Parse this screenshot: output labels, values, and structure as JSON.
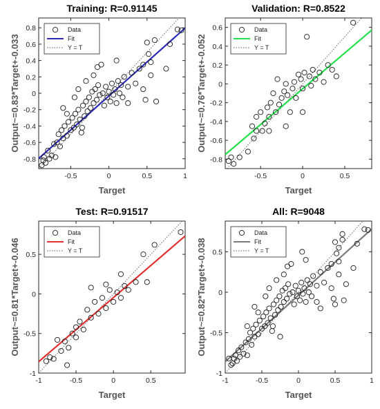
{
  "chart_data": [
    {
      "type": "scatter",
      "title": "Training: R=0.91145",
      "xlabel": "Target",
      "ylabel": "Output~=0.83*Target+-0.033",
      "xlim": [
        -0.92,
        1.0
      ],
      "ylim": [
        -0.92,
        0.92
      ],
      "xticks": [
        "-0.5",
        "0",
        "0.5",
        "1"
      ],
      "xtick_values": [
        -0.5,
        0,
        0.5,
        1
      ],
      "yticks": [
        "-0.8",
        "-0.6",
        "-0.4",
        "-0.2",
        "0",
        "0.2",
        "0.4",
        "0.6",
        "0.8"
      ],
      "ytick_values": [
        -0.8,
        -0.6,
        -0.4,
        -0.2,
        0,
        0.2,
        0.4,
        0.6,
        0.8
      ],
      "fit": {
        "slope": 0.83,
        "intercept": -0.033,
        "color": "#2B2BB8"
      },
      "legend": [
        "Data",
        "Fit",
        "Y = T"
      ],
      "legend_position": "top-left",
      "points": [
        [
          -0.88,
          -0.88
        ],
        [
          -0.86,
          -0.82
        ],
        [
          -0.85,
          -0.78
        ],
        [
          -0.83,
          -0.85
        ],
        [
          -0.8,
          -0.7
        ],
        [
          -0.78,
          -0.8
        ],
        [
          -0.75,
          -0.76
        ],
        [
          -0.72,
          -0.62
        ],
        [
          -0.7,
          -0.78
        ],
        [
          -0.68,
          -0.6
        ],
        [
          -0.66,
          -0.5
        ],
        [
          -0.64,
          -0.65
        ],
        [
          -0.62,
          -0.45
        ],
        [
          -0.6,
          -0.55
        ],
        [
          -0.58,
          -0.4
        ],
        [
          -0.55,
          -0.52
        ],
        [
          -0.53,
          -0.35
        ],
        [
          -0.5,
          -0.45
        ],
        [
          -0.48,
          -0.3
        ],
        [
          -0.46,
          -0.42
        ],
        [
          -0.44,
          -0.25
        ],
        [
          -0.42,
          -0.38
        ],
        [
          -0.4,
          -0.2
        ],
        [
          -0.38,
          -0.32
        ],
        [
          -0.36,
          -0.48
        ],
        [
          -0.34,
          -0.15
        ],
        [
          -0.32,
          -0.28
        ],
        [
          -0.3,
          -0.1
        ],
        [
          -0.28,
          -0.22
        ],
        [
          -0.26,
          -0.05
        ],
        [
          -0.24,
          -0.18
        ],
        [
          -0.22,
          0.02
        ],
        [
          -0.2,
          -0.12
        ],
        [
          -0.18,
          0.05
        ],
        [
          -0.16,
          -0.08
        ],
        [
          -0.14,
          0.1
        ],
        [
          -0.12,
          -0.02
        ],
        [
          -0.1,
          0.35
        ],
        [
          -0.08,
          0.0
        ],
        [
          -0.06,
          -0.15
        ],
        [
          -0.04,
          0.08
        ],
        [
          -0.02,
          -0.05
        ],
        [
          0.0,
          0.02
        ],
        [
          0.02,
          -0.1
        ],
        [
          0.04,
          0.12
        ],
        [
          0.06,
          -0.02
        ],
        [
          0.08,
          0.05
        ],
        [
          0.1,
          -0.12
        ],
        [
          0.12,
          0.15
        ],
        [
          0.14,
          0.0
        ],
        [
          0.16,
          0.1
        ],
        [
          0.18,
          -0.05
        ],
        [
          0.2,
          0.2
        ],
        [
          0.25,
          0.08
        ],
        [
          0.3,
          0.25
        ],
        [
          0.35,
          0.12
        ],
        [
          0.4,
          0.3
        ],
        [
          0.45,
          0.35
        ],
        [
          0.5,
          0.62
        ],
        [
          0.52,
          0.48
        ],
        [
          0.55,
          0.38
        ],
        [
          0.55,
          0.22
        ],
        [
          0.6,
          0.65
        ],
        [
          0.62,
          -0.1
        ],
        [
          0.48,
          -0.08
        ],
        [
          0.45,
          0.05
        ],
        [
          0.75,
          0.3
        ],
        [
          0.8,
          0.6
        ],
        [
          0.9,
          0.78
        ],
        [
          0.95,
          0.77
        ],
        [
          -0.6,
          -0.18
        ],
        [
          -0.55,
          -0.25
        ],
        [
          -0.45,
          -0.05
        ],
        [
          -0.2,
          0.22
        ],
        [
          -0.15,
          0.32
        ],
        [
          0.1,
          0.4
        ],
        [
          -0.3,
          0.15
        ],
        [
          -0.4,
          0.05
        ],
        [
          -0.35,
          -0.42
        ],
        [
          0.25,
          -0.12
        ]
      ]
    },
    {
      "type": "scatter",
      "title": "Validation: R=0.8522",
      "xlabel": "Target",
      "ylabel": "Output~=0.76*Target+-0.052",
      "xlim": [
        -0.92,
        0.82
      ],
      "ylim": [
        -0.9,
        0.7
      ],
      "xticks": [
        "-0.5",
        "0",
        "0.5"
      ],
      "xtick_values": [
        -0.5,
        0,
        0.5
      ],
      "yticks": [
        "-0.8",
        "-0.6",
        "-0.4",
        "-0.2",
        "0",
        "0.2",
        "0.4",
        "0.6"
      ],
      "ytick_values": [
        -0.8,
        -0.6,
        -0.4,
        -0.2,
        0,
        0.2,
        0.4,
        0.6
      ],
      "fit": {
        "slope": 0.76,
        "intercept": -0.052,
        "color": "#22E04A"
      },
      "legend": [
        "Data",
        "Fit",
        "Y = T"
      ],
      "legend_position": "top-left",
      "points": [
        [
          -0.88,
          -0.82
        ],
        [
          -0.85,
          -0.78
        ],
        [
          -0.82,
          -0.85
        ],
        [
          -0.75,
          -0.78
        ],
        [
          -0.65,
          -0.72
        ],
        [
          -0.6,
          -0.45
        ],
        [
          -0.55,
          -0.5
        ],
        [
          -0.5,
          -0.3
        ],
        [
          -0.45,
          -0.42
        ],
        [
          -0.42,
          -0.25
        ],
        [
          -0.4,
          -0.35
        ],
        [
          -0.38,
          -0.2
        ],
        [
          -0.35,
          -0.1
        ],
        [
          -0.32,
          -0.3
        ],
        [
          -0.3,
          0.05
        ],
        [
          -0.28,
          -0.22
        ],
        [
          -0.25,
          -0.15
        ],
        [
          -0.22,
          -0.08
        ],
        [
          -0.2,
          0.0
        ],
        [
          -0.18,
          -0.12
        ],
        [
          -0.15,
          -0.3
        ],
        [
          -0.12,
          -0.05
        ],
        [
          -0.1,
          0.02
        ],
        [
          -0.08,
          -0.15
        ],
        [
          -0.05,
          0.1
        ],
        [
          -0.02,
          0.05
        ],
        [
          0.0,
          -0.05
        ],
        [
          0.02,
          0.12
        ],
        [
          0.05,
          0.5
        ],
        [
          0.08,
          0.08
        ],
        [
          0.1,
          -0.02
        ],
        [
          0.12,
          0.15
        ],
        [
          0.15,
          0.05
        ],
        [
          0.2,
          0.12
        ],
        [
          0.25,
          0.02
        ],
        [
          0.3,
          0.2
        ],
        [
          0.35,
          0.15
        ],
        [
          0.4,
          0.08
        ],
        [
          0.6,
          0.65
        ],
        [
          -0.48,
          -0.5
        ],
        [
          -0.58,
          -0.58
        ],
        [
          -0.2,
          -0.45
        ],
        [
          0.0,
          -0.3
        ],
        [
          -0.4,
          -0.5
        ],
        [
          -0.55,
          -0.35
        ]
      ]
    },
    {
      "type": "scatter",
      "title": "Test: R=0.91517",
      "xlabel": "Target",
      "ylabel": "Output~=0.81*Target+-0.046",
      "xlim": [
        -1.0,
        0.96
      ],
      "ylim": [
        -1.0,
        0.92
      ],
      "xticks": [
        "-1",
        "-0.5",
        "0",
        "0.5"
      ],
      "xtick_values": [
        -1,
        -0.5,
        0,
        0.5
      ],
      "yticks": [
        "-1",
        "-0.5",
        "0",
        "0.5"
      ],
      "ytick_values": [
        -1,
        -0.5,
        0,
        0.5
      ],
      "fit": {
        "slope": 0.81,
        "intercept": -0.046,
        "color": "#E03030"
      },
      "legend": [
        "Data",
        "Fit",
        "Y = T"
      ],
      "legend_position": "top-left",
      "points": [
        [
          -0.9,
          -0.85
        ],
        [
          -0.85,
          -0.8
        ],
        [
          -0.8,
          -0.82
        ],
        [
          -0.75,
          -0.58
        ],
        [
          -0.7,
          -0.72
        ],
        [
          -0.65,
          -0.6
        ],
        [
          -0.6,
          -0.68
        ],
        [
          -0.55,
          -0.5
        ],
        [
          -0.5,
          -0.55
        ],
        [
          -0.45,
          -0.35
        ],
        [
          -0.4,
          -0.45
        ],
        [
          -0.35,
          -0.2
        ],
        [
          -0.3,
          -0.3
        ],
        [
          -0.25,
          -0.1
        ],
        [
          -0.2,
          -0.25
        ],
        [
          -0.15,
          -0.05
        ],
        [
          -0.1,
          -0.18
        ],
        [
          -0.05,
          0.05
        ],
        [
          0.0,
          -0.1
        ],
        [
          0.05,
          0.02
        ],
        [
          0.1,
          -0.05
        ],
        [
          0.15,
          0.1
        ],
        [
          0.2,
          0.05
        ],
        [
          0.3,
          0.15
        ],
        [
          0.45,
          0.15
        ],
        [
          0.4,
          0.5
        ],
        [
          0.55,
          0.62
        ],
        [
          0.9,
          0.78
        ],
        [
          -0.3,
          0.08
        ],
        [
          -0.1,
          0.12
        ],
        [
          0.1,
          0.25
        ],
        [
          -0.5,
          -0.42
        ],
        [
          -0.62,
          -0.9
        ]
      ]
    },
    {
      "type": "scatter",
      "title": "All: R=9048",
      "xlabel": "Target",
      "ylabel": "Output~=0.82*Target+-0.038",
      "xlim": [
        -1.0,
        1.0
      ],
      "ylim": [
        -1.0,
        0.88
      ],
      "xticks": [
        "-1",
        "-0.5",
        "0",
        "0.5",
        "1"
      ],
      "xtick_values": [
        -1,
        -0.5,
        0,
        0.5,
        1
      ],
      "yticks": [
        "-1",
        "-0.5",
        "0",
        "0.5"
      ],
      "ytick_values": [
        -1,
        -0.5,
        0,
        0.5
      ],
      "fit": {
        "slope": 0.82,
        "intercept": -0.038,
        "color": "#7A7A7A"
      },
      "legend": [
        "Data",
        "Fit",
        "Y = T"
      ],
      "legend_position": "top-left",
      "points": [
        [
          -0.9,
          -0.88
        ],
        [
          -0.88,
          -0.82
        ],
        [
          -0.86,
          -0.78
        ],
        [
          -0.84,
          -0.85
        ],
        [
          -0.82,
          -0.72
        ],
        [
          -0.8,
          -0.8
        ],
        [
          -0.78,
          -0.68
        ],
        [
          -0.75,
          -0.76
        ],
        [
          -0.72,
          -0.62
        ],
        [
          -0.7,
          -0.78
        ],
        [
          -0.68,
          -0.58
        ],
        [
          -0.66,
          -0.5
        ],
        [
          -0.64,
          -0.65
        ],
        [
          -0.62,
          -0.45
        ],
        [
          -0.6,
          -0.55
        ],
        [
          -0.58,
          -0.4
        ],
        [
          -0.55,
          -0.52
        ],
        [
          -0.53,
          -0.35
        ],
        [
          -0.5,
          -0.45
        ],
        [
          -0.48,
          -0.3
        ],
        [
          -0.46,
          -0.42
        ],
        [
          -0.44,
          -0.25
        ],
        [
          -0.42,
          -0.38
        ],
        [
          -0.4,
          -0.2
        ],
        [
          -0.38,
          -0.32
        ],
        [
          -0.36,
          -0.48
        ],
        [
          -0.34,
          -0.15
        ],
        [
          -0.32,
          -0.28
        ],
        [
          -0.3,
          -0.1
        ],
        [
          -0.28,
          -0.22
        ],
        [
          -0.26,
          -0.05
        ],
        [
          -0.24,
          -0.18
        ],
        [
          -0.22,
          0.02
        ],
        [
          -0.2,
          -0.12
        ],
        [
          -0.18,
          0.05
        ],
        [
          -0.16,
          -0.08
        ],
        [
          -0.14,
          0.1
        ],
        [
          -0.12,
          -0.02
        ],
        [
          -0.1,
          0.35
        ],
        [
          -0.08,
          0.0
        ],
        [
          -0.06,
          -0.15
        ],
        [
          -0.04,
          0.08
        ],
        [
          -0.02,
          -0.05
        ],
        [
          0.0,
          0.02
        ],
        [
          0.02,
          -0.1
        ],
        [
          0.04,
          0.12
        ],
        [
          0.06,
          -0.02
        ],
        [
          0.08,
          0.05
        ],
        [
          0.1,
          -0.12
        ],
        [
          0.12,
          0.15
        ],
        [
          0.14,
          0.0
        ],
        [
          0.16,
          0.1
        ],
        [
          0.18,
          -0.05
        ],
        [
          0.2,
          0.2
        ],
        [
          0.25,
          0.08
        ],
        [
          0.3,
          0.25
        ],
        [
          0.35,
          0.12
        ],
        [
          0.4,
          0.3
        ],
        [
          0.45,
          0.35
        ],
        [
          0.5,
          0.62
        ],
        [
          0.52,
          0.48
        ],
        [
          0.55,
          0.38
        ],
        [
          0.55,
          0.22
        ],
        [
          0.6,
          0.65
        ],
        [
          0.62,
          -0.1
        ],
        [
          0.48,
          -0.08
        ],
        [
          0.45,
          0.05
        ],
        [
          0.75,
          0.3
        ],
        [
          0.8,
          0.6
        ],
        [
          0.9,
          0.78
        ],
        [
          0.95,
          0.77
        ],
        [
          -0.6,
          -0.18
        ],
        [
          -0.55,
          -0.25
        ],
        [
          -0.45,
          -0.05
        ],
        [
          -0.2,
          0.22
        ],
        [
          -0.15,
          0.32
        ],
        [
          0.1,
          0.4
        ],
        [
          -0.3,
          0.15
        ],
        [
          -0.4,
          0.05
        ],
        [
          -0.35,
          -0.42
        ],
        [
          0.25,
          -0.12
        ],
        [
          -0.95,
          -0.82
        ],
        [
          -0.92,
          -0.9
        ],
        [
          0.55,
          0.55
        ],
        [
          0.6,
          0.72
        ],
        [
          -0.25,
          -0.55
        ],
        [
          0.3,
          -0.2
        ],
        [
          0.5,
          -0.15
        ],
        [
          0.65,
          0.1
        ],
        [
          -0.7,
          -0.42
        ],
        [
          0.05,
          0.5
        ]
      ]
    }
  ]
}
